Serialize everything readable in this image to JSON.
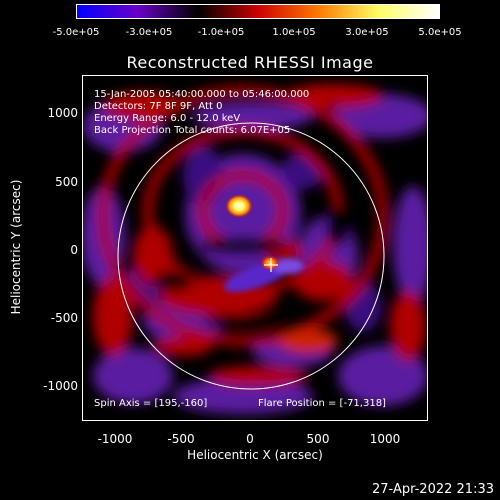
{
  "colorbar": {
    "labels": [
      "-5.0e+05",
      "-3.0e+05",
      "-1.0e+05",
      "1.0e+05",
      "3.0e+05",
      "5.0e+05"
    ],
    "colors": [
      "#0000ff",
      "#6a00c8",
      "#000000",
      "#cc0000",
      "#ff7a00",
      "#ffff66",
      "#ffffff"
    ]
  },
  "title": "Reconstructed RHESSI Image",
  "info": {
    "line1": "15-Jan-2005 05:40:00.000 to 05:46:00.000",
    "line2": "Detectors: 7F 8F 9F, Att 0",
    "line3": "Energy Range: 6.0 - 12.0 keV",
    "line4": "Back Projection    Total counts: 6.07E+05"
  },
  "spin_axis": "Spin Axis = [195,-160]",
  "flare_position": "Flare Position = [-71,318]",
  "axes": {
    "xlabel": "Heliocentric X (arcsec)",
    "ylabel": "Heliocentric Y (arcsec)",
    "xticks": [
      "-1000",
      "-500",
      "0",
      "500",
      "1000"
    ],
    "yticks": [
      "1000",
      "500",
      "0",
      "-500",
      "-1000"
    ]
  },
  "timestamp": "27-Apr-2022 21:33"
}
